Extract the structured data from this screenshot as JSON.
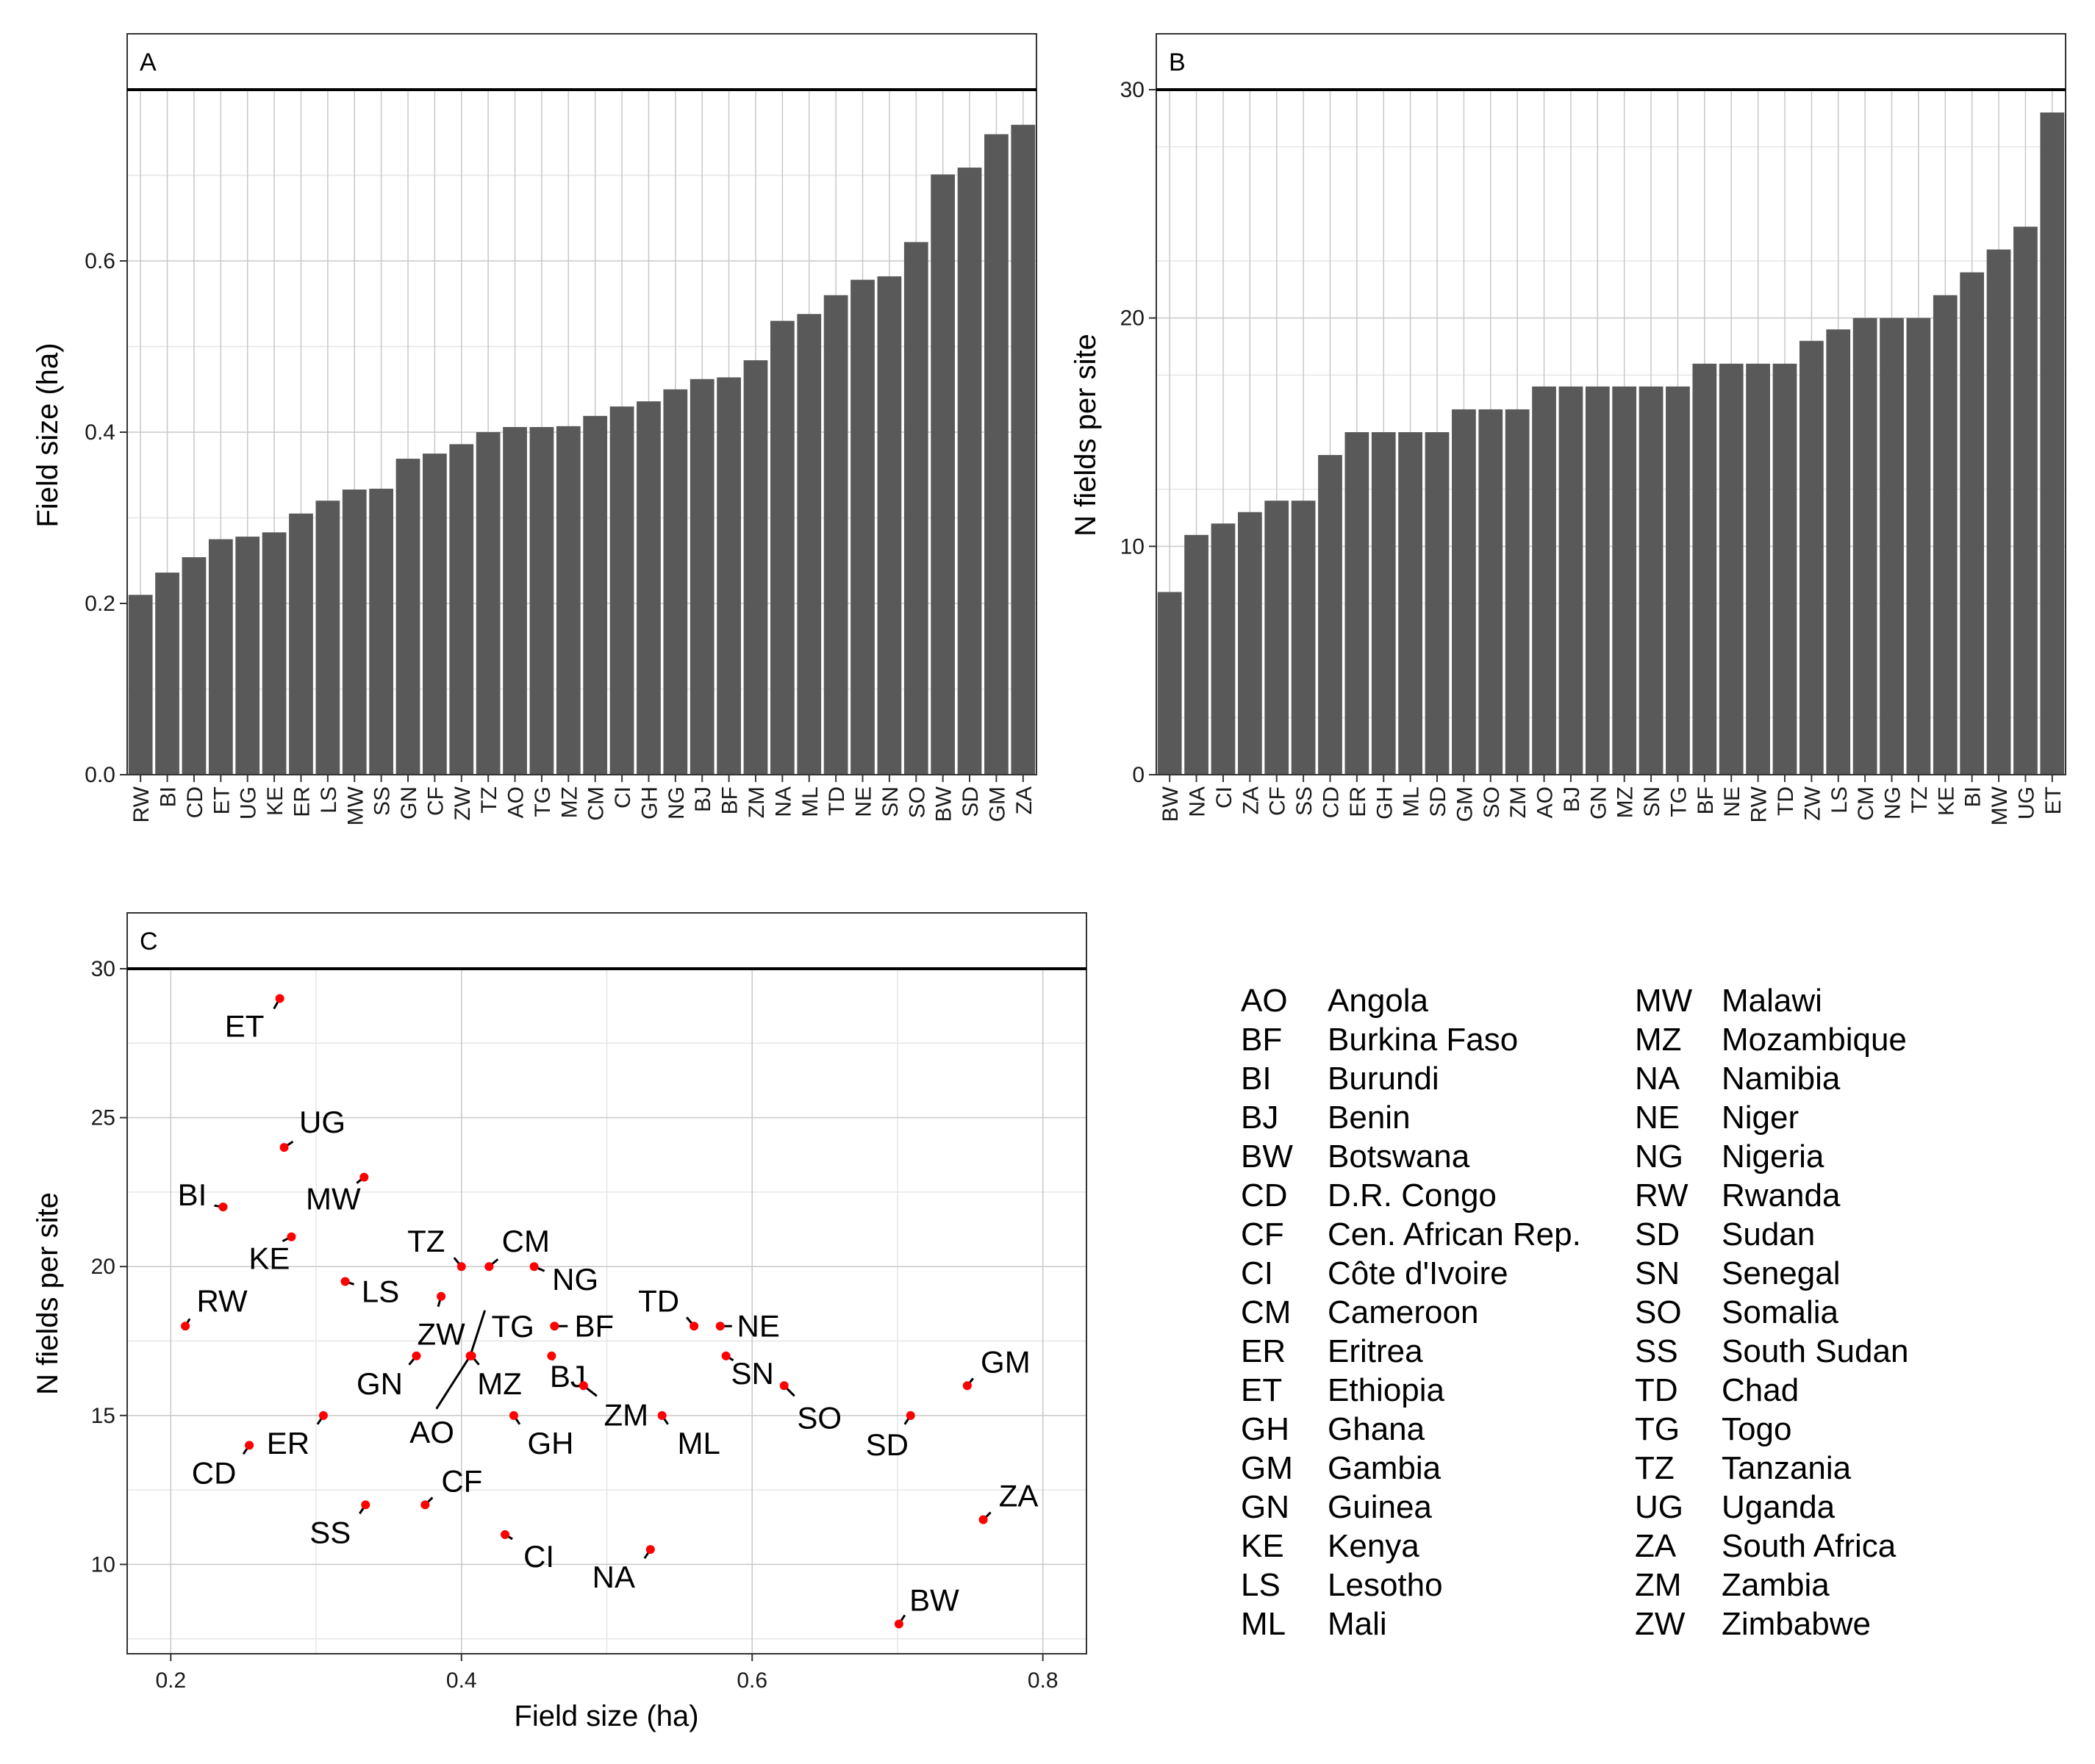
{
  "chart_data": [
    {
      "panel": "A",
      "type": "bar",
      "ylabel": "Field size (ha)",
      "xlabel": "",
      "ylim": [
        0,
        0.8
      ],
      "yticks": [
        0.0,
        0.2,
        0.4,
        0.6
      ],
      "ytick_labels": [
        "0.0",
        "0.2",
        "0.4",
        "0.6"
      ],
      "grid": true,
      "categories": [
        "RW",
        "BI",
        "CD",
        "ET",
        "UG",
        "KE",
        "ER",
        "LS",
        "MW",
        "SS",
        "GN",
        "CF",
        "ZW",
        "TZ",
        "AO",
        "TG",
        "MZ",
        "CM",
        "CI",
        "GH",
        "NG",
        "BJ",
        "BF",
        "ZM",
        "NA",
        "ML",
        "TD",
        "NE",
        "SN",
        "SO",
        "BW",
        "SD",
        "GM",
        "ZA"
      ],
      "values": [
        0.21,
        0.236,
        0.254,
        0.275,
        0.278,
        0.283,
        0.305,
        0.32,
        0.333,
        0.334,
        0.369,
        0.375,
        0.386,
        0.4,
        0.406,
        0.406,
        0.407,
        0.419,
        0.43,
        0.436,
        0.45,
        0.462,
        0.464,
        0.484,
        0.53,
        0.538,
        0.56,
        0.578,
        0.582,
        0.622,
        0.701,
        0.709,
        0.748,
        0.759
      ]
    },
    {
      "panel": "B",
      "type": "bar",
      "ylabel": "N fields per site",
      "xlabel": "",
      "ylim": [
        0,
        30
      ],
      "yticks": [
        0,
        10,
        20,
        30
      ],
      "ytick_labels": [
        "0",
        "10",
        "20",
        "30"
      ],
      "grid": true,
      "categories": [
        "BW",
        "NA",
        "CI",
        "ZA",
        "CF",
        "SS",
        "CD",
        "ER",
        "GH",
        "ML",
        "SD",
        "GM",
        "SO",
        "ZM",
        "AO",
        "BJ",
        "GN",
        "MZ",
        "SN",
        "TG",
        "BF",
        "NE",
        "RW",
        "TD",
        "ZW",
        "LS",
        "CM",
        "NG",
        "TZ",
        "KE",
        "BI",
        "MW",
        "UG",
        "ET"
      ],
      "values": [
        8,
        10.5,
        11,
        11.5,
        12,
        12,
        14,
        15,
        15,
        15,
        15,
        16,
        16,
        16,
        17,
        17,
        17,
        17,
        17,
        17,
        18,
        18,
        18,
        18,
        19,
        19.5,
        20,
        20,
        20,
        21,
        22,
        23,
        24,
        29
      ]
    },
    {
      "panel": "C",
      "type": "scatter",
      "xlabel": "Field size (ha)",
      "ylabel": "N fields per site",
      "xlim": [
        0.17,
        0.83
      ],
      "ylim": [
        7.0,
        30.0
      ],
      "xticks": [
        0.2,
        0.4,
        0.6,
        0.8
      ],
      "xtick_labels": [
        "0.2",
        "0.4",
        "0.6",
        "0.8"
      ],
      "yticks": [
        10,
        15,
        20,
        25,
        30
      ],
      "ytick_labels": [
        "10",
        "15",
        "20",
        "25",
        "30"
      ],
      "grid": true,
      "point_color": "#ff0000",
      "points": [
        {
          "label": "ET",
          "x": 0.275,
          "y": 29
        },
        {
          "label": "UG",
          "x": 0.278,
          "y": 24
        },
        {
          "label": "BI",
          "x": 0.236,
          "y": 22
        },
        {
          "label": "KE",
          "x": 0.283,
          "y": 21
        },
        {
          "label": "MW",
          "x": 0.333,
          "y": 23
        },
        {
          "label": "TZ",
          "x": 0.4,
          "y": 20
        },
        {
          "label": "CM",
          "x": 0.419,
          "y": 20
        },
        {
          "label": "NG",
          "x": 0.45,
          "y": 20
        },
        {
          "label": "LS",
          "x": 0.32,
          "y": 19.5
        },
        {
          "label": "RW",
          "x": 0.21,
          "y": 18
        },
        {
          "label": "ZW",
          "x": 0.386,
          "y": 19
        },
        {
          "label": "TG",
          "x": 0.406,
          "y": 17
        },
        {
          "label": "BF",
          "x": 0.464,
          "y": 18
        },
        {
          "label": "TD",
          "x": 0.56,
          "y": 18
        },
        {
          "label": "NE",
          "x": 0.578,
          "y": 18
        },
        {
          "label": "GN",
          "x": 0.369,
          "y": 17
        },
        {
          "label": "MZ",
          "x": 0.407,
          "y": 17
        },
        {
          "label": "BJ",
          "x": 0.462,
          "y": 17
        },
        {
          "label": "SN",
          "x": 0.582,
          "y": 17
        },
        {
          "label": "AO",
          "x": 0.406,
          "y": 17
        },
        {
          "label": "ZM",
          "x": 0.484,
          "y": 16
        },
        {
          "label": "SO",
          "x": 0.622,
          "y": 16
        },
        {
          "label": "GM",
          "x": 0.748,
          "y": 16
        },
        {
          "label": "ER",
          "x": 0.305,
          "y": 15
        },
        {
          "label": "GH",
          "x": 0.436,
          "y": 15
        },
        {
          "label": "ML",
          "x": 0.538,
          "y": 15
        },
        {
          "label": "SD",
          "x": 0.709,
          "y": 15
        },
        {
          "label": "CD",
          "x": 0.254,
          "y": 14
        },
        {
          "label": "CF",
          "x": 0.375,
          "y": 12
        },
        {
          "label": "SS",
          "x": 0.334,
          "y": 12
        },
        {
          "label": "ZA",
          "x": 0.759,
          "y": 11.5
        },
        {
          "label": "CI",
          "x": 0.43,
          "y": 11
        },
        {
          "label": "NA",
          "x": 0.53,
          "y": 10.5
        },
        {
          "label": "BW",
          "x": 0.701,
          "y": 8
        }
      ]
    }
  ],
  "panels": {
    "a": {
      "title": "A"
    },
    "b": {
      "title": "B"
    },
    "c": {
      "title": "C"
    }
  },
  "legend": [
    {
      "code": "AO",
      "name": "Angola"
    },
    {
      "code": "BF",
      "name": "Burkina Faso"
    },
    {
      "code": "BI",
      "name": "Burundi"
    },
    {
      "code": "BJ",
      "name": "Benin"
    },
    {
      "code": "BW",
      "name": "Botswana"
    },
    {
      "code": "CD",
      "name": "D.R. Congo"
    },
    {
      "code": "CF",
      "name": "Cen. African Rep."
    },
    {
      "code": "CI",
      "name": "Côte d'Ivoire"
    },
    {
      "code": "CM",
      "name": "Cameroon"
    },
    {
      "code": "ER",
      "name": "Eritrea"
    },
    {
      "code": "ET",
      "name": "Ethiopia"
    },
    {
      "code": "GH",
      "name": "Ghana"
    },
    {
      "code": "GM",
      "name": "Gambia"
    },
    {
      "code": "GN",
      "name": "Guinea"
    },
    {
      "code": "KE",
      "name": "Kenya"
    },
    {
      "code": "LS",
      "name": "Lesotho"
    },
    {
      "code": "ML",
      "name": "Mali"
    },
    {
      "code": "MW",
      "name": "Malawi"
    },
    {
      "code": "MZ",
      "name": "Mozambique"
    },
    {
      "code": "NA",
      "name": "Namibia"
    },
    {
      "code": "NE",
      "name": "Niger"
    },
    {
      "code": "NG",
      "name": "Nigeria"
    },
    {
      "code": "RW",
      "name": "Rwanda"
    },
    {
      "code": "SD",
      "name": "Sudan"
    },
    {
      "code": "SN",
      "name": "Senegal"
    },
    {
      "code": "SO",
      "name": "Somalia"
    },
    {
      "code": "SS",
      "name": "South Sudan"
    },
    {
      "code": "TD",
      "name": "Chad"
    },
    {
      "code": "TG",
      "name": "Togo"
    },
    {
      "code": "TZ",
      "name": "Tanzania"
    },
    {
      "code": "UG",
      "name": "Uganda"
    },
    {
      "code": "ZA",
      "name": "South Africa"
    },
    {
      "code": "ZM",
      "name": "Zambia"
    },
    {
      "code": "ZW",
      "name": "Zimbabwe"
    }
  ],
  "colors": {
    "bar_fill": "#595959",
    "grid_major": "#c8c8c8",
    "grid_minor": "#e6e6e6",
    "point": "#ff0000",
    "panel_border": "#333333"
  }
}
